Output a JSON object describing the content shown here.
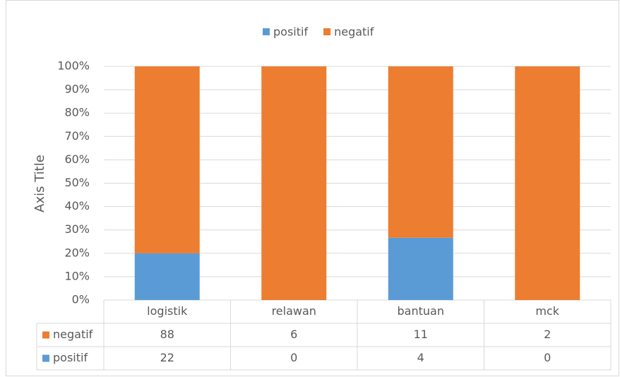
{
  "chart_data": {
    "type": "stacked100",
    "y_axis_title": "Axis Title",
    "categories": [
      "logistik",
      "relawan",
      "bantuan",
      "mck"
    ],
    "series": [
      {
        "name": "positif",
        "color": "#5b9bd5",
        "values": [
          22,
          0,
          4,
          0
        ]
      },
      {
        "name": "negatif",
        "color": "#ed7d31",
        "values": [
          88,
          6,
          11,
          2
        ]
      }
    ],
    "ylim": [
      0,
      100
    ],
    "yticks": [
      {
        "value": 0,
        "label": "0%"
      },
      {
        "value": 10,
        "label": "10%"
      },
      {
        "value": 20,
        "label": "20%"
      },
      {
        "value": 30,
        "label": "30%"
      },
      {
        "value": 40,
        "label": "40%"
      },
      {
        "value": 50,
        "label": "50%"
      },
      {
        "value": 60,
        "label": "60%"
      },
      {
        "value": 70,
        "label": "70%"
      },
      {
        "value": 80,
        "label": "80%"
      },
      {
        "value": 90,
        "label": "90%"
      },
      {
        "value": 100,
        "label": "100%"
      }
    ],
    "grid": true,
    "legend": "top",
    "data_table": true
  }
}
